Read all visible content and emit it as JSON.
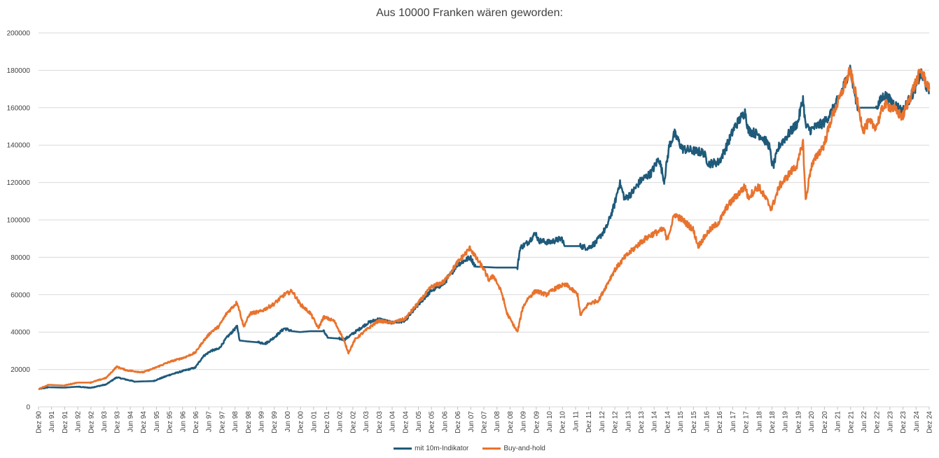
{
  "chart_data": {
    "type": "line",
    "title": "Aus 10000 Franken wären geworden:",
    "xlabel": "",
    "ylabel": "",
    "ylim": [
      0,
      200000
    ],
    "yticks": [
      0,
      20000,
      40000,
      60000,
      80000,
      100000,
      120000,
      140000,
      160000,
      180000,
      200000
    ],
    "xlim": [
      1990.917,
      2024.917
    ],
    "xtick_labels": [
      "Dez 90",
      "Jun 91",
      "Dez 91",
      "Jun 92",
      "Dez 92",
      "Jun 93",
      "Dez 93",
      "Jun 94",
      "Dez 94",
      "Jun 95",
      "Dez 95",
      "Jun 96",
      "Dez 96",
      "Jun 97",
      "Dez 97",
      "Jun 98",
      "Dez 98",
      "Jun 99",
      "Dez 99",
      "Jun 00",
      "Dez 00",
      "Jun 01",
      "Dez 01",
      "Jun 02",
      "Dez 02",
      "Jun 03",
      "Dez 03",
      "Jun 04",
      "Dez 04",
      "Jun 05",
      "Dez 05",
      "Jun 06",
      "Dez 06",
      "Jun 07",
      "Dez 07",
      "Jun 08",
      "Dez 08",
      "Jun 09",
      "Dez 09",
      "Jun 10",
      "Dez 10",
      "Jun 11",
      "Dez 11",
      "Jun 12",
      "Dez 12",
      "Jun 13",
      "Dez 13",
      "Jun 14",
      "Dez 14",
      "Jun 15",
      "Dez 15",
      "Jun 16",
      "Dez 16",
      "Jun 17",
      "Dez 17",
      "Jun 18",
      "Dez 18",
      "Jun 19",
      "Dez 19",
      "Jun 20",
      "Dez 20",
      "Jun 21",
      "Dez 21",
      "Jun 22",
      "Dez 22",
      "Jun 23",
      "Dez 23",
      "Jun 24",
      "Dez 24"
    ],
    "grid": true,
    "legend_position": "bottom",
    "series": [
      {
        "name": "mit 10m-Indikator",
        "color": "#1f5a7a",
        "points": [
          [
            1990.92,
            9500
          ],
          [
            1991.3,
            10500
          ],
          [
            1991.9,
            10300
          ],
          [
            1992.4,
            10800
          ],
          [
            1992.9,
            10200
          ],
          [
            1993.5,
            12000
          ],
          [
            1993.9,
            15800
          ],
          [
            1994.3,
            14500
          ],
          [
            1994.6,
            13500
          ],
          [
            1995.3,
            13800
          ],
          [
            1995.9,
            17000
          ],
          [
            1996.5,
            19500
          ],
          [
            1996.9,
            21000
          ],
          [
            1997.2,
            27000
          ],
          [
            1997.5,
            30000
          ],
          [
            1997.8,
            31000
          ],
          [
            1998.1,
            37000
          ],
          [
            1998.5,
            43000
          ],
          [
            1998.6,
            35500
          ],
          [
            1998.9,
            35000
          ],
          [
            1999.3,
            34500
          ],
          [
            1999.6,
            34000
          ],
          [
            1999.9,
            37000
          ],
          [
            2000.3,
            42000
          ],
          [
            2000.6,
            40500
          ],
          [
            2000.9,
            40000
          ],
          [
            2001.3,
            40500
          ],
          [
            2001.8,
            40500
          ],
          [
            2001.95,
            37000
          ],
          [
            2002.4,
            36500
          ],
          [
            2002.6,
            36000
          ],
          [
            2003.0,
            40000
          ],
          [
            2003.5,
            45000
          ],
          [
            2003.9,
            47000
          ],
          [
            2004.4,
            45000
          ],
          [
            2004.9,
            46000
          ],
          [
            2005.5,
            56000
          ],
          [
            2005.9,
            62000
          ],
          [
            2006.4,
            66000
          ],
          [
            2006.9,
            76000
          ],
          [
            2007.4,
            80000
          ],
          [
            2007.6,
            75000
          ],
          [
            2008.4,
            74500
          ],
          [
            2009.2,
            74500
          ],
          [
            2009.3,
            85000
          ],
          [
            2009.6,
            88000
          ],
          [
            2009.9,
            93000
          ],
          [
            2010.0,
            89000
          ],
          [
            2010.4,
            88000
          ],
          [
            2010.9,
            90000
          ],
          [
            2011.0,
            86000
          ],
          [
            2011.6,
            86000
          ],
          [
            2011.9,
            85000
          ],
          [
            2012.2,
            88000
          ],
          [
            2012.6,
            96000
          ],
          [
            2012.9,
            108000
          ],
          [
            2013.1,
            120000
          ],
          [
            2013.3,
            111000
          ],
          [
            2013.6,
            115000
          ],
          [
            2013.9,
            121000
          ],
          [
            2014.3,
            125000
          ],
          [
            2014.6,
            133000
          ],
          [
            2014.8,
            121000
          ],
          [
            2015.0,
            140000
          ],
          [
            2015.2,
            146000
          ],
          [
            2015.5,
            138000
          ],
          [
            2015.9,
            137000
          ],
          [
            2016.3,
            136000
          ],
          [
            2016.5,
            130000
          ],
          [
            2016.9,
            131000
          ],
          [
            2017.2,
            140000
          ],
          [
            2017.5,
            150000
          ],
          [
            2017.9,
            158000
          ],
          [
            2018.0,
            148000
          ],
          [
            2018.5,
            145000
          ],
          [
            2018.8,
            140000
          ],
          [
            2018.95,
            128000
          ],
          [
            2019.2,
            140000
          ],
          [
            2019.5,
            145000
          ],
          [
            2019.9,
            152000
          ],
          [
            2020.1,
            165000
          ],
          [
            2020.2,
            150000
          ],
          [
            2020.4,
            148000
          ],
          [
            2020.6,
            150000
          ],
          [
            2020.9,
            152000
          ],
          [
            2021.2,
            158000
          ],
          [
            2021.5,
            166000
          ],
          [
            2021.9,
            181000
          ],
          [
            2022.0,
            172000
          ],
          [
            2022.2,
            160000
          ],
          [
            2022.9,
            160000
          ],
          [
            2023.2,
            167000
          ],
          [
            2023.5,
            163000
          ],
          [
            2023.9,
            158000
          ],
          [
            2024.3,
            168000
          ],
          [
            2024.6,
            178000
          ],
          [
            2024.92,
            168000
          ]
        ]
      },
      {
        "name": "Buy-and-hold",
        "color": "#e8732e",
        "points": [
          [
            1990.92,
            9500
          ],
          [
            1991.3,
            11800
          ],
          [
            1991.9,
            11400
          ],
          [
            1992.4,
            13000
          ],
          [
            1992.9,
            13000
          ],
          [
            1993.5,
            15500
          ],
          [
            1993.9,
            21500
          ],
          [
            1994.3,
            19500
          ],
          [
            1994.9,
            18500
          ],
          [
            1995.3,
            20500
          ],
          [
            1995.9,
            24000
          ],
          [
            1996.5,
            26500
          ],
          [
            1996.9,
            29000
          ],
          [
            1997.2,
            35000
          ],
          [
            1997.5,
            40000
          ],
          [
            1997.8,
            43000
          ],
          [
            1998.1,
            50000
          ],
          [
            1998.5,
            56000
          ],
          [
            1998.75,
            43000
          ],
          [
            1999.0,
            50000
          ],
          [
            1999.4,
            51000
          ],
          [
            1999.9,
            55000
          ],
          [
            2000.3,
            60000
          ],
          [
            2000.6,
            62000
          ],
          [
            2000.9,
            55000
          ],
          [
            2001.3,
            50000
          ],
          [
            2001.6,
            42000
          ],
          [
            2001.8,
            48000
          ],
          [
            2002.2,
            46000
          ],
          [
            2002.5,
            38000
          ],
          [
            2002.75,
            29000
          ],
          [
            2003.0,
            36000
          ],
          [
            2003.5,
            42000
          ],
          [
            2003.9,
            46000
          ],
          [
            2004.4,
            45000
          ],
          [
            2004.9,
            47000
          ],
          [
            2005.5,
            57000
          ],
          [
            2005.9,
            64000
          ],
          [
            2006.4,
            67000
          ],
          [
            2006.9,
            77000
          ],
          [
            2007.4,
            85000
          ],
          [
            2007.6,
            80000
          ],
          [
            2007.9,
            74000
          ],
          [
            2008.1,
            68000
          ],
          [
            2008.3,
            70000
          ],
          [
            2008.6,
            61000
          ],
          [
            2008.8,
            50000
          ],
          [
            2009.2,
            40000
          ],
          [
            2009.4,
            53000
          ],
          [
            2009.6,
            58000
          ],
          [
            2009.9,
            62000
          ],
          [
            2010.3,
            60000
          ],
          [
            2010.6,
            63000
          ],
          [
            2010.9,
            65000
          ],
          [
            2011.1,
            65000
          ],
          [
            2011.5,
            60000
          ],
          [
            2011.6,
            49000
          ],
          [
            2011.9,
            55000
          ],
          [
            2012.3,
            57000
          ],
          [
            2012.6,
            65000
          ],
          [
            2012.9,
            73000
          ],
          [
            2013.3,
            80000
          ],
          [
            2013.6,
            84000
          ],
          [
            2013.9,
            88000
          ],
          [
            2014.3,
            92000
          ],
          [
            2014.8,
            95000
          ],
          [
            2014.9,
            89000
          ],
          [
            2015.2,
            103000
          ],
          [
            2015.5,
            100000
          ],
          [
            2015.9,
            95000
          ],
          [
            2016.1,
            86000
          ],
          [
            2016.5,
            94000
          ],
          [
            2016.9,
            99000
          ],
          [
            2017.2,
            107000
          ],
          [
            2017.5,
            112000
          ],
          [
            2017.9,
            118000
          ],
          [
            2018.0,
            112000
          ],
          [
            2018.4,
            118000
          ],
          [
            2018.9,
            106000
          ],
          [
            2019.2,
            118000
          ],
          [
            2019.6,
            125000
          ],
          [
            2019.9,
            130000
          ],
          [
            2020.1,
            142000
          ],
          [
            2020.2,
            110000
          ],
          [
            2020.4,
            128000
          ],
          [
            2020.7,
            136000
          ],
          [
            2020.9,
            140000
          ],
          [
            2021.2,
            155000
          ],
          [
            2021.5,
            165000
          ],
          [
            2021.9,
            180000
          ],
          [
            2022.1,
            168000
          ],
          [
            2022.4,
            148000
          ],
          [
            2022.6,
            152000
          ],
          [
            2022.9,
            150000
          ],
          [
            2023.2,
            162000
          ],
          [
            2023.5,
            160000
          ],
          [
            2023.9,
            155000
          ],
          [
            2024.3,
            170000
          ],
          [
            2024.6,
            180000
          ],
          [
            2024.92,
            170000
          ]
        ]
      }
    ]
  }
}
